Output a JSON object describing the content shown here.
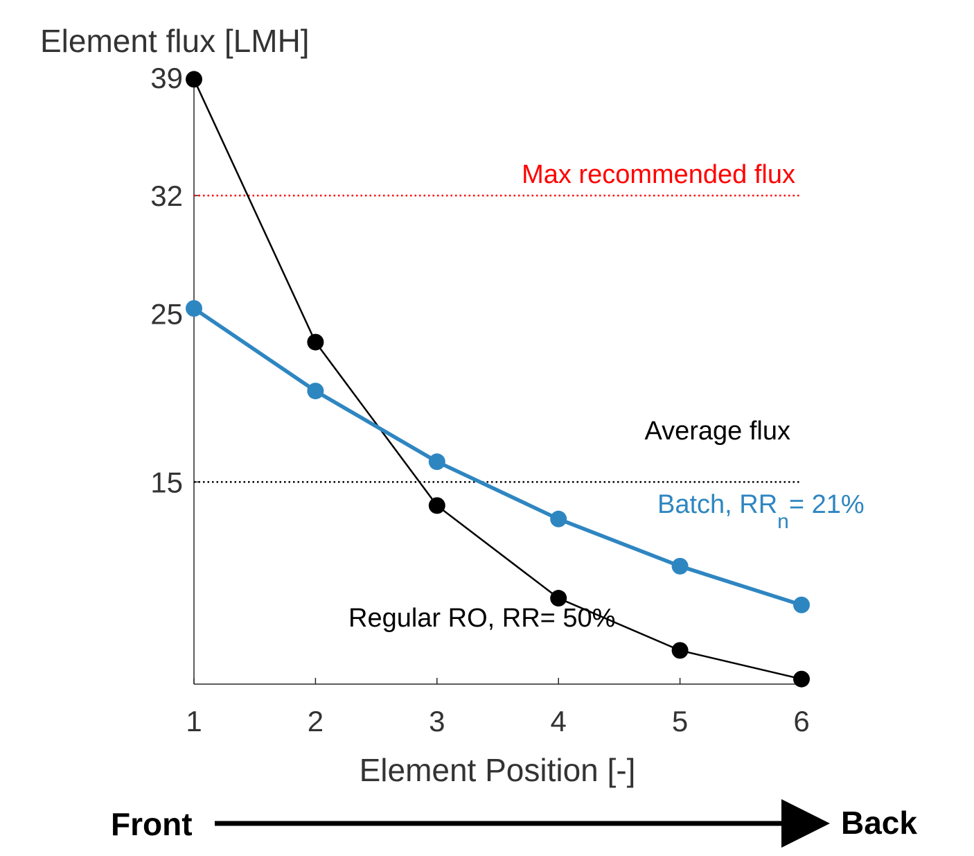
{
  "chart_data": {
    "type": "line",
    "title": "",
    "ylabel": "Element flux [LMH]",
    "xlabel": "Element Position [-]",
    "x": [
      1,
      2,
      3,
      4,
      5,
      6
    ],
    "xlim": [
      1,
      6
    ],
    "ylim": [
      3,
      39
    ],
    "x_ticks": [
      "1",
      "2",
      "3",
      "4",
      "5",
      "6"
    ],
    "y_ticks": [
      {
        "value": 15,
        "label": "15"
      },
      {
        "value": 25,
        "label": "25"
      },
      {
        "value": 32,
        "label": "32"
      },
      {
        "value": 39,
        "label": "39"
      }
    ],
    "grid": false,
    "series": [
      {
        "name": "Regular RO, RR= 50%",
        "color": "#000000",
        "values": [
          38.9,
          23.3,
          13.6,
          8.1,
          5.0,
          3.3
        ]
      },
      {
        "name": "Batch, RR",
        "name_subscript": "n",
        "name_suffix": "= 21%",
        "color": "#2e86c1",
        "values": [
          25.3,
          20.4,
          16.2,
          12.8,
          10.0,
          7.7
        ]
      }
    ],
    "reference_lines": [
      {
        "name": "Max recommended flux",
        "value": 32.0,
        "color": "#ff0000"
      },
      {
        "name": "Average flux",
        "value": 15.0,
        "color": "#000000"
      }
    ],
    "direction": {
      "start_label": "Front",
      "end_label": "Back"
    }
  }
}
